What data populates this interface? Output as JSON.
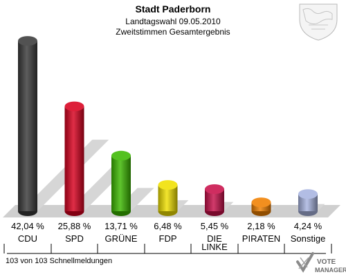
{
  "header": {
    "title": "Stadt Paderborn",
    "subtitle1": "Landtagswahl 09.05.2010",
    "subtitle2": "Zweitstimmen Gesamtergebnis"
  },
  "footer": {
    "note": "103 von 103 Schnellmeldungen",
    "logo_line1": "VOTE",
    "logo_line2": "MANAGER"
  },
  "chart_data": {
    "type": "bar",
    "title": "Stadt Paderborn",
    "subtitle": "Landtagswahl 09.05.2010 – Zweitstimmen Gesamtergebnis",
    "xlabel": "",
    "ylabel": "",
    "ylim": [
      0,
      45
    ],
    "grid": false,
    "legend": "none",
    "categories": [
      "CDU",
      "SPD",
      "GRÜNE",
      "FDP",
      "DIE LINKE",
      "PIRATEN",
      "Sonstige"
    ],
    "category_lines": [
      [
        "CDU"
      ],
      [
        "SPD"
      ],
      [
        "GRÜNE"
      ],
      [
        "FDP"
      ],
      [
        "DIE",
        "LINKE"
      ],
      [
        "PIRATEN"
      ],
      [
        "Sonstige"
      ]
    ],
    "values": [
      42.04,
      25.88,
      13.71,
      6.48,
      5.45,
      2.18,
      4.24
    ],
    "value_labels": [
      "42,04 %",
      "25,88 %",
      "13,71 %",
      "6,48 %",
      "5,45 %",
      "2,18 %",
      "4,24 %"
    ],
    "colors": [
      "#3a3a3a",
      "#d8001e",
      "#3cb800",
      "#f0e000",
      "#c8104a",
      "#f08000",
      "#a8b4e0"
    ]
  }
}
